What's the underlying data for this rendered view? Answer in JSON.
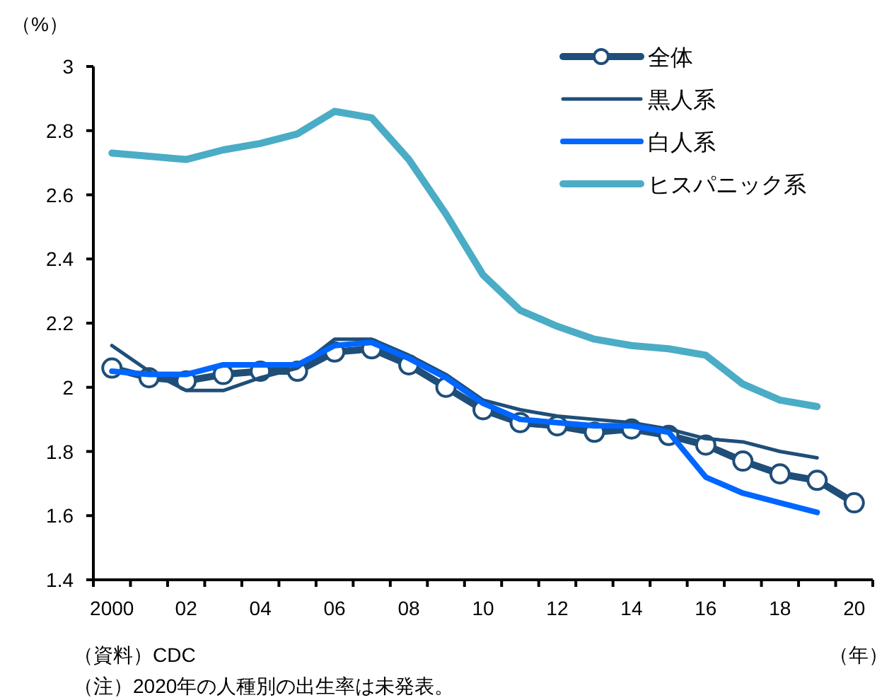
{
  "chart_data": {
    "type": "line",
    "ylabel": "（%）",
    "xlabel": "（年）",
    "categories": [
      "2000",
      null,
      "02",
      null,
      "04",
      null,
      "06",
      null,
      "08",
      null,
      "10",
      null,
      "12",
      null,
      "14",
      null,
      "16",
      null,
      "18",
      null,
      "20"
    ],
    "series": [
      {
        "name": "全体",
        "color": "#1f4e79",
        "marker": "circle",
        "values": [
          2.06,
          2.03,
          2.02,
          2.04,
          2.05,
          2.05,
          2.11,
          2.12,
          2.07,
          2.0,
          1.93,
          1.89,
          1.88,
          1.86,
          1.87,
          1.85,
          1.82,
          1.77,
          1.73,
          1.71,
          1.64
        ]
      },
      {
        "name": "黒人系",
        "color": "#1f4e79",
        "values": [
          2.13,
          2.05,
          1.99,
          1.99,
          2.03,
          2.06,
          2.15,
          2.15,
          2.1,
          2.04,
          1.96,
          1.93,
          1.91,
          1.9,
          1.89,
          1.87,
          1.84,
          1.83,
          1.8,
          1.78,
          null
        ]
      },
      {
        "name": "白人系",
        "color": "#0066ff",
        "values": [
          2.05,
          2.04,
          2.04,
          2.07,
          2.07,
          2.07,
          2.13,
          2.14,
          2.09,
          2.03,
          1.95,
          1.9,
          1.89,
          1.88,
          1.88,
          1.86,
          1.72,
          1.67,
          1.64,
          1.61,
          null
        ]
      },
      {
        "name": "ヒスパニック系",
        "color": "#4bacc6",
        "values": [
          2.73,
          2.72,
          2.71,
          2.74,
          2.76,
          2.79,
          2.86,
          2.84,
          2.71,
          2.54,
          2.35,
          2.24,
          2.19,
          2.15,
          2.13,
          2.12,
          2.1,
          2.01,
          1.96,
          1.94,
          null
        ]
      }
    ],
    "ylim": [
      1.4,
      3
    ],
    "yticks": [
      1.4,
      1.6,
      1.8,
      2,
      2.2,
      2.4,
      2.6,
      2.8,
      3
    ],
    "grid": false,
    "legend": "top right",
    "annotations": [
      "（資料）CDC",
      "（注）2020年の人種別の出生率は未発表。"
    ]
  }
}
